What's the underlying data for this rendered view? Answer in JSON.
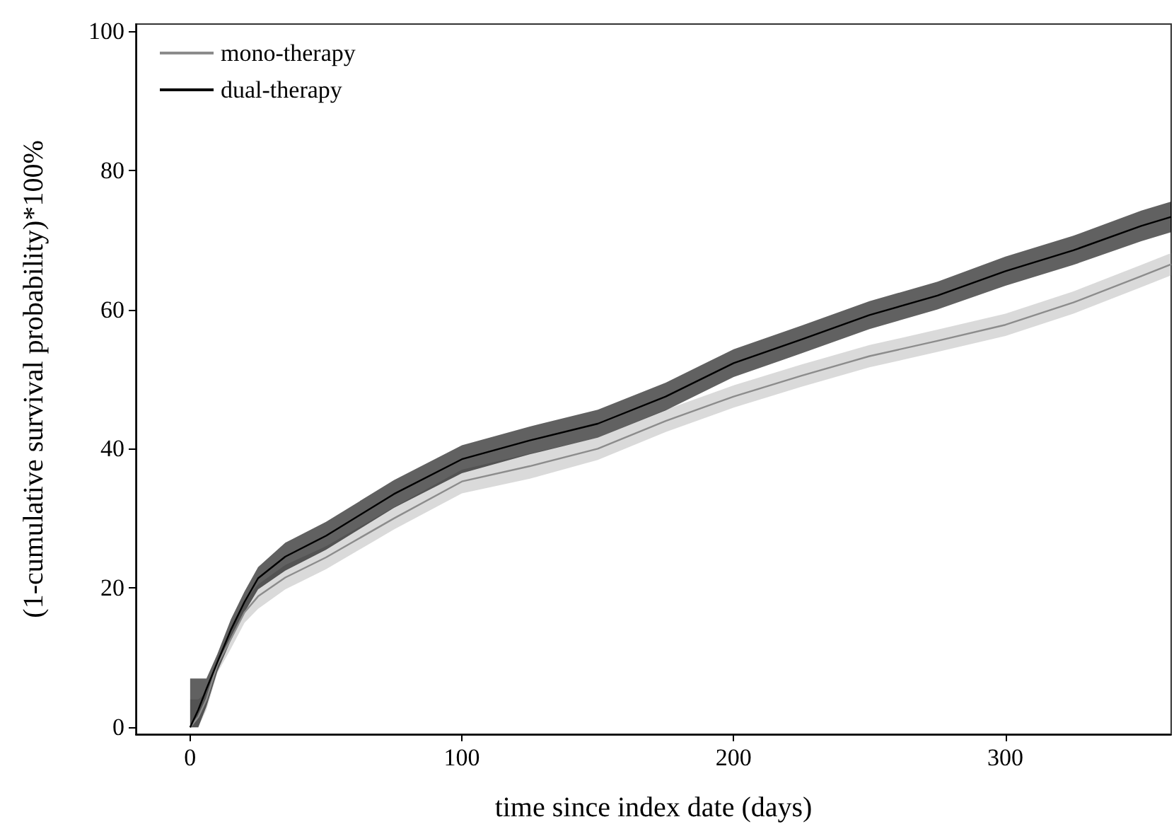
{
  "chart_data": {
    "type": "line",
    "xlabel": "time since index date (days)",
    "ylabel": "(1-cumulative survival probability)*100%",
    "x": [
      0,
      3,
      6,
      10,
      15,
      20,
      25,
      35,
      50,
      75,
      100,
      125,
      150,
      175,
      200,
      225,
      250,
      275,
      300,
      325,
      350,
      361
    ],
    "series": [
      {
        "name": "mono-therapy",
        "color": "#8c8c8c",
        "values": [
          0,
          1.5,
          4,
          9,
          12.7,
          16.5,
          18.8,
          21.5,
          24.4,
          30,
          35.3,
          37.5,
          40,
          44,
          47.5,
          50.5,
          53.3,
          55.5,
          57.8,
          61,
          64.8,
          66.5
        ],
        "lower": [
          0,
          0,
          2.5,
          7.8,
          11.3,
          15,
          17,
          19.8,
          22.7,
          28.4,
          33.6,
          35.7,
          38.4,
          42.4,
          45.9,
          48.9,
          51.7,
          53.9,
          56.2,
          59.4,
          63.2,
          64.9
        ],
        "upper": [
          4,
          4,
          5,
          10,
          14,
          18,
          20.5,
          23.3,
          26,
          31.6,
          37,
          39.3,
          41.6,
          45.6,
          49.1,
          52.1,
          54.9,
          57.1,
          59.4,
          62.6,
          66.4,
          68.1
        ]
      },
      {
        "name": "dual-therapy",
        "color": "#000000",
        "values": [
          0,
          2.5,
          5.5,
          9.3,
          14,
          18,
          21.4,
          24.5,
          27.5,
          33.5,
          38.5,
          41.2,
          43.6,
          47.5,
          52.3,
          55.7,
          59.2,
          62,
          65.5,
          68.5,
          72,
          73.3
        ],
        "lower": [
          0,
          0,
          3,
          8,
          12.5,
          16.5,
          19.8,
          22.5,
          25.5,
          31.5,
          36.5,
          39.2,
          41.6,
          45.5,
          50.3,
          53.7,
          57.2,
          60,
          63.4,
          66.4,
          69.8,
          71.1
        ],
        "upper": [
          7,
          7,
          7,
          10.5,
          15.5,
          19.5,
          23,
          26.5,
          29.5,
          35.5,
          40.5,
          43.2,
          45.6,
          49.5,
          54.3,
          57.7,
          61.2,
          64,
          67.6,
          70.6,
          74.2,
          75.5
        ]
      }
    ],
    "xlim": [
      -20,
      361
    ],
    "xticks": [
      0,
      100,
      200,
      300
    ],
    "ylim": [
      -1,
      101
    ],
    "yticks": [
      0,
      20,
      40,
      60,
      80,
      100
    ],
    "grid": false,
    "legend": "top left"
  }
}
